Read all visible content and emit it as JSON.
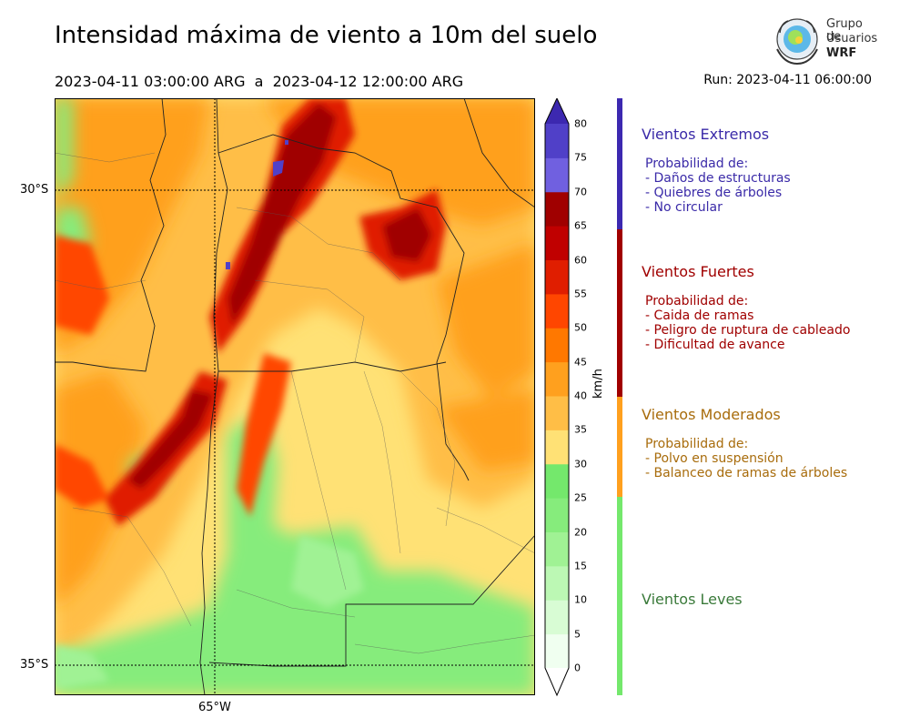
{
  "title": "Intensidad máxima de viento a 10m del suelo",
  "subtitle": "2023-04-11 03:00:00 ARG  a  2023-04-12 12:00:00 ARG",
  "run": "Run: 2023-04-11 06:00:00",
  "logo": {
    "line1": "Grupo de",
    "line2": "Usuarios",
    "line3": "WRF"
  },
  "map": {
    "lat_labels": [
      "30°S",
      "35°S"
    ],
    "lon_labels": [
      "65°W"
    ]
  },
  "colorbar": {
    "unit": "km/h",
    "ticks": [
      "0",
      "5",
      "10",
      "15",
      "20",
      "25",
      "30",
      "35",
      "40",
      "45",
      "50",
      "55",
      "60",
      "65",
      "70",
      "75",
      "80"
    ],
    "colors": [
      "#f0fff0",
      "#d8fcd4",
      "#bcf8b4",
      "#a0f294",
      "#86ec7c",
      "#74e86c",
      "#ffe175",
      "#ffbe46",
      "#ffa01e",
      "#ff7800",
      "#ff4600",
      "#e01e00",
      "#c00000",
      "#a00000",
      "#7060e0",
      "#5040c8",
      "#3c28b0"
    ]
  },
  "categories": [
    {
      "title": "Vientos Extremos",
      "color": "#3a2aa8",
      "lines": [
        "Probabilidad de:",
        "- Daños de estructuras",
        "- Quiebres de árboles",
        "- No circular"
      ]
    },
    {
      "title": "Vientos Fuertes",
      "color": "#a00000",
      "lines": [
        "Probabilidad de:",
        "- Caida de ramas",
        "- Peligro de ruptura de cableado",
        "- Dificultad de avance"
      ]
    },
    {
      "title": "Vientos Moderados",
      "color": "#a86c0c",
      "lines": [
        "Probabilidad de:",
        "- Polvo en suspensión",
        "- Balanceo de ramas de árboles"
      ]
    },
    {
      "title": "Vientos Leves",
      "color": "#3a7a3a",
      "lines": []
    }
  ]
}
